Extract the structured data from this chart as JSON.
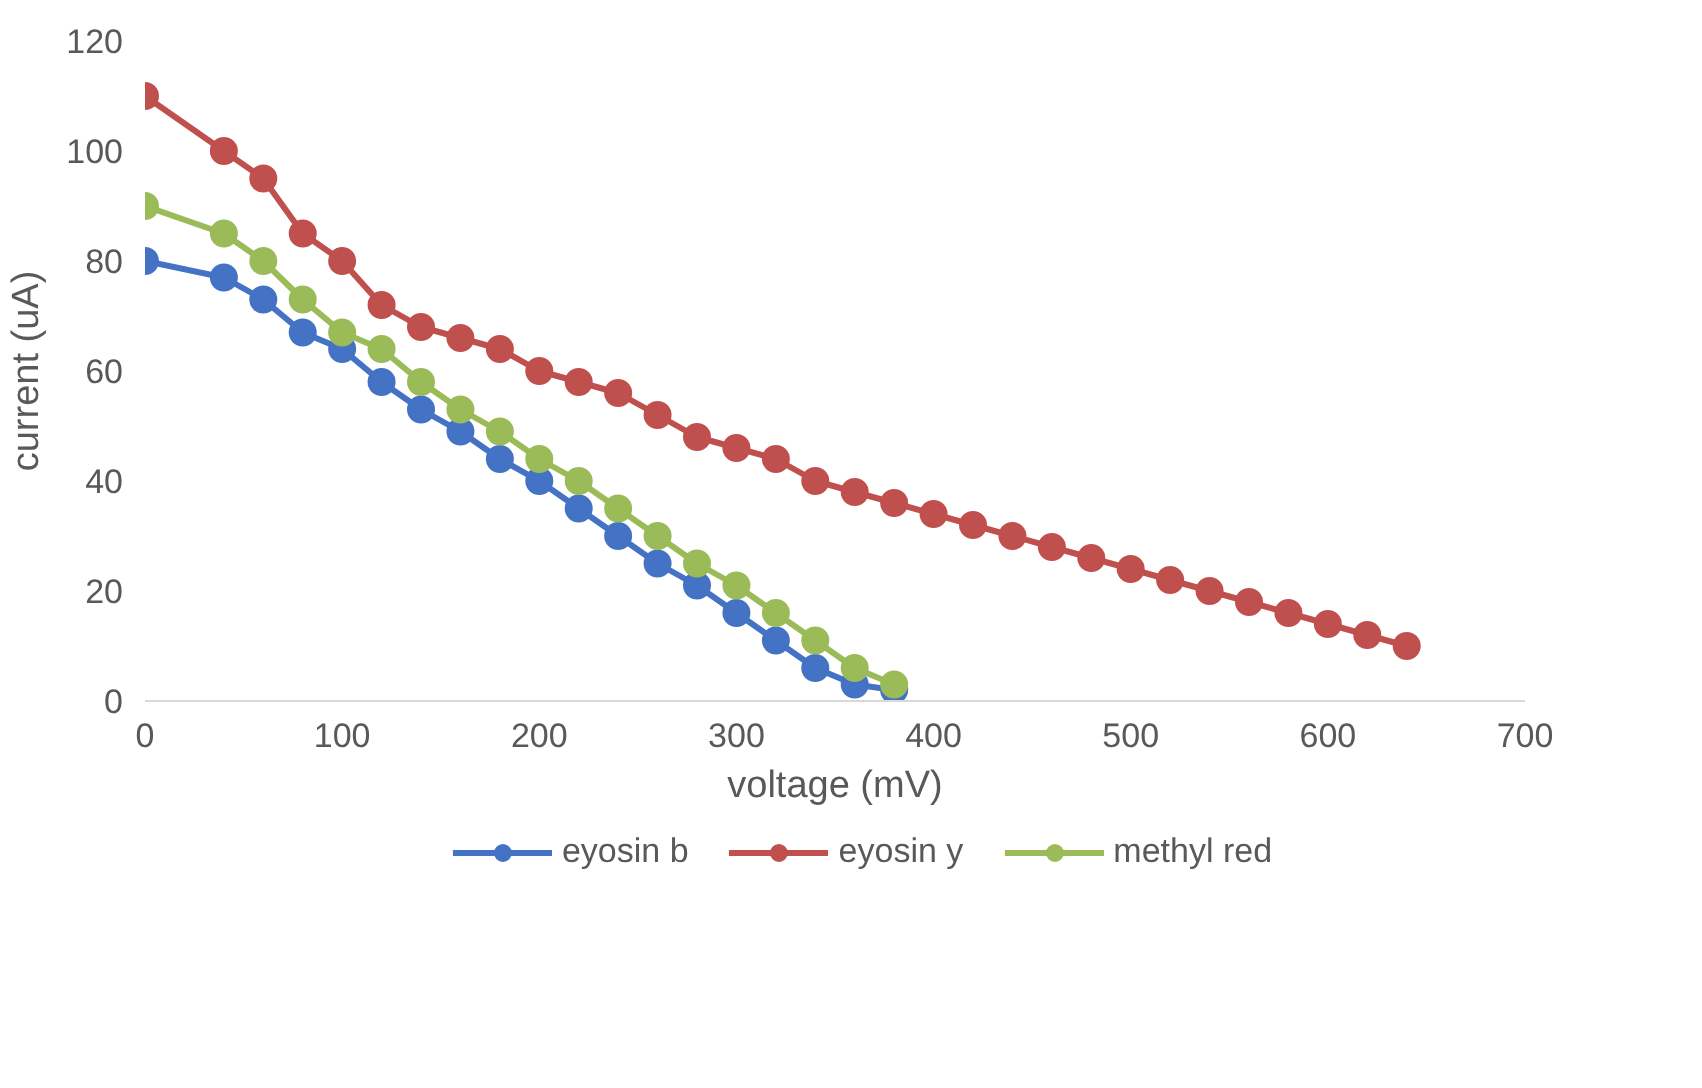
{
  "chart_data": {
    "type": "line",
    "xlabel": "voltage (mV)",
    "ylabel": "current (uA)",
    "xlim": [
      0,
      700
    ],
    "xticks": [
      0,
      100,
      200,
      300,
      400,
      500,
      600,
      700
    ],
    "ylim": [
      0,
      120
    ],
    "yticks": [
      0,
      20,
      40,
      60,
      80,
      100,
      120
    ],
    "grid": false,
    "legend": "bottom",
    "marker": "circle",
    "line_style": "solid",
    "series": [
      {
        "name": "eyosin b",
        "color": "#4472c4",
        "x": [
          0,
          40,
          60,
          80,
          100,
          120,
          140,
          160,
          180,
          200,
          220,
          240,
          260,
          280,
          300,
          320,
          340,
          360,
          380
        ],
        "values": [
          80,
          77,
          73,
          67,
          64,
          58,
          53,
          49,
          44,
          40,
          35,
          30,
          25,
          21,
          16,
          11,
          6,
          3,
          2
        ]
      },
      {
        "name": "eyosin y",
        "color": "#c0504d",
        "x": [
          0,
          40,
          60,
          80,
          100,
          120,
          140,
          160,
          180,
          200,
          220,
          240,
          260,
          280,
          300,
          320,
          340,
          360,
          380,
          400,
          420,
          440,
          460,
          480,
          500,
          520,
          540,
          560,
          580,
          600,
          620,
          640
        ],
        "values": [
          110,
          100,
          95,
          85,
          80,
          72,
          68,
          66,
          64,
          60,
          58,
          56,
          52,
          48,
          46,
          44,
          40,
          38,
          36,
          34,
          32,
          30,
          28,
          26,
          24,
          22,
          20,
          18,
          16,
          14,
          12,
          10
        ]
      },
      {
        "name": "methyl red",
        "color": "#9bbb59",
        "x": [
          0,
          40,
          60,
          80,
          100,
          120,
          140,
          160,
          180,
          200,
          220,
          240,
          260,
          280,
          300,
          320,
          340,
          360,
          380
        ],
        "values": [
          90,
          85,
          80,
          73,
          67,
          64,
          58,
          53,
          49,
          44,
          40,
          35,
          30,
          25,
          21,
          16,
          11,
          6,
          3
        ]
      }
    ]
  }
}
